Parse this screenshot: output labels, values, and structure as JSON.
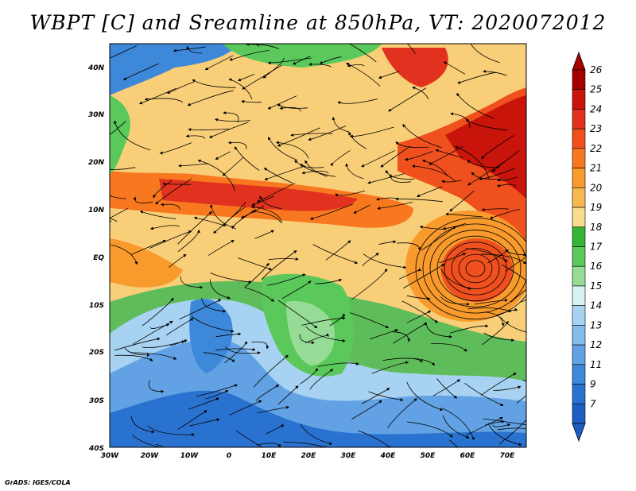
{
  "title": "WBPT [C] and Sreamline at 850hPa, VT: 2020072012",
  "credit": "GrADS: IGES/COLA",
  "map": {
    "lon_range": [
      -30,
      75
    ],
    "lat_range": [
      -40,
      45
    ],
    "lat_ticks": [
      "40N",
      "30N",
      "20N",
      "10N",
      "EQ",
      "10S",
      "20S",
      "30S",
      "40S"
    ],
    "lon_ticks": [
      "30W",
      "20W",
      "10W",
      "0",
      "10E",
      "20E",
      "30E",
      "40E",
      "50E",
      "60E",
      "70E"
    ]
  },
  "colorbar": {
    "labels": [
      "26",
      "25",
      "24",
      "23",
      "22",
      "21",
      "20",
      "19",
      "18",
      "17",
      "16",
      "15",
      "14",
      "13",
      "12",
      "11",
      "9",
      "7"
    ],
    "colors": [
      "#a50000",
      "#c8140a",
      "#e0321e",
      "#f0501e",
      "#f87820",
      "#f89a2c",
      "#f8b850",
      "#f8dc90",
      "#36b436",
      "#5ac85a",
      "#96dc96",
      "#d6f2f2",
      "#a8d2f2",
      "#86bcec",
      "#62a2e4",
      "#3e88da",
      "#2a72d0",
      "#1e5ec4"
    ]
  }
}
